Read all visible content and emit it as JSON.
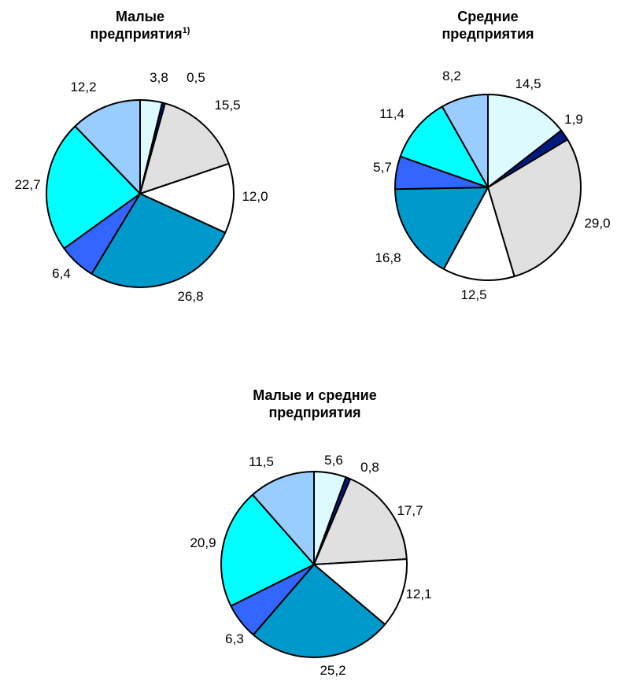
{
  "colors": {
    "outline": "#000000",
    "slice_colors": [
      "#ddfbff",
      "#001a80",
      "#e0e0e0",
      "#ffffff",
      "#0099cc",
      "#3366ff",
      "#00ffff",
      "#99ccff"
    ]
  },
  "chart_data": [
    {
      "type": "pie",
      "title_line1": "Малые",
      "title_line2": "предприятия",
      "title_sup": "1)",
      "labels": [
        "3,8",
        "0,5",
        "15,5",
        "12,0",
        "26,8",
        "6,4",
        "22,7",
        "12,2"
      ],
      "values": [
        3.8,
        0.5,
        15.5,
        12.0,
        26.8,
        6.4,
        22.7,
        12.2
      ]
    },
    {
      "type": "pie",
      "title_line1": "Средние",
      "title_line2": "предприятия",
      "title_sup": "",
      "labels": [
        "14,5",
        "1,9",
        "29,0",
        "12,5",
        "16,8",
        "5,7",
        "11,4",
        "8,2"
      ],
      "values": [
        14.5,
        1.9,
        29.0,
        12.5,
        16.8,
        5.7,
        11.4,
        8.2
      ]
    },
    {
      "type": "pie",
      "title_line1": "Малые и средние",
      "title_line2": "предприятия",
      "title_sup": "",
      "labels": [
        "5,6",
        "0,8",
        "17,7",
        "12,1",
        "25,2",
        "6,3",
        "20,9",
        "11,5"
      ],
      "values": [
        5.6,
        0.8,
        17.7,
        12.1,
        25.2,
        6.3,
        20.9,
        11.5
      ]
    }
  ]
}
